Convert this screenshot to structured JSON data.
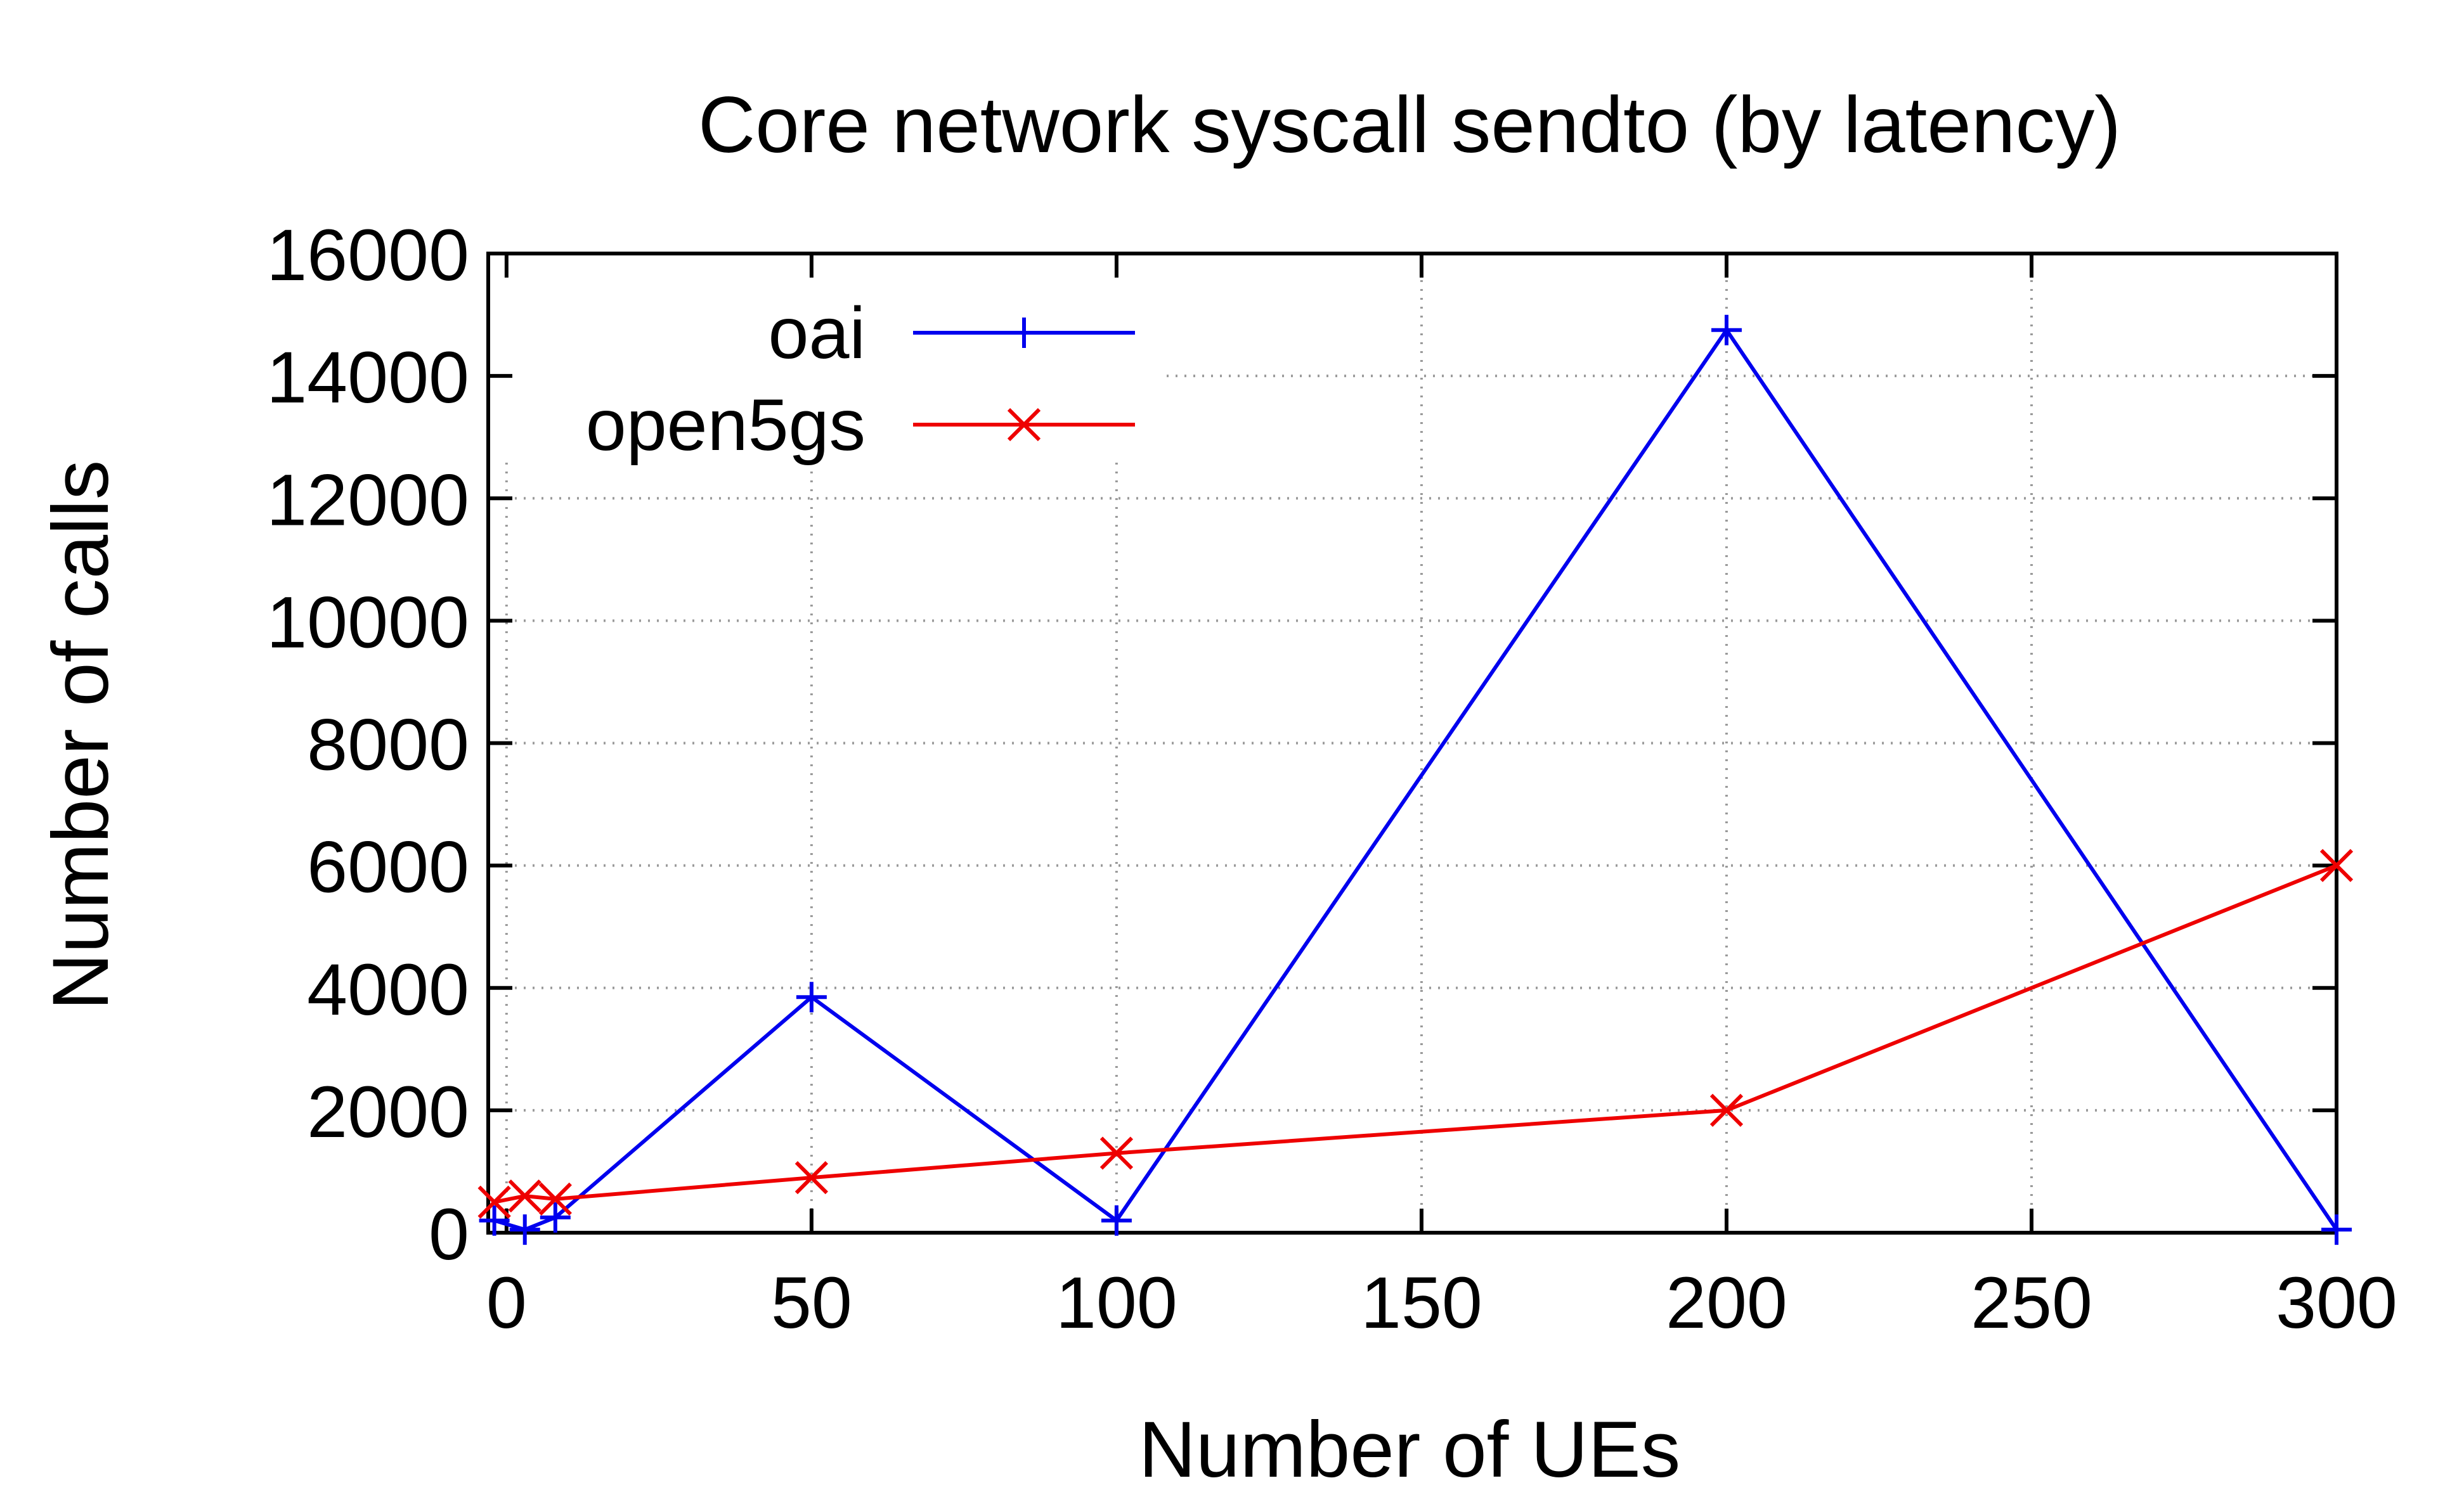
{
  "chart_data": {
    "type": "line",
    "title": "Core network syscall sendto (by latency)",
    "xlabel": "Number of UEs",
    "ylabel": "Number of calls",
    "xlim": [
      -3,
      300
    ],
    "ylim": [
      0,
      16000
    ],
    "xticks": [
      0,
      50,
      100,
      150,
      200,
      250,
      300
    ],
    "yticks": [
      0,
      2000,
      4000,
      6000,
      8000,
      10000,
      12000,
      14000,
      16000
    ],
    "grid": true,
    "legend_position": "top-left",
    "series": [
      {
        "name": "oai",
        "color": "#0000ee",
        "marker": "plus",
        "x": [
          -2,
          3,
          8,
          50,
          100,
          200,
          300
        ],
        "y": [
          200,
          50,
          250,
          3850,
          200,
          14750,
          50
        ]
      },
      {
        "name": "open5gs",
        "color": "#ee0000",
        "marker": "cross",
        "x": [
          -2,
          3,
          8,
          50,
          100,
          200,
          300
        ],
        "y": [
          500,
          600,
          550,
          900,
          1300,
          2000,
          6000
        ]
      }
    ]
  }
}
